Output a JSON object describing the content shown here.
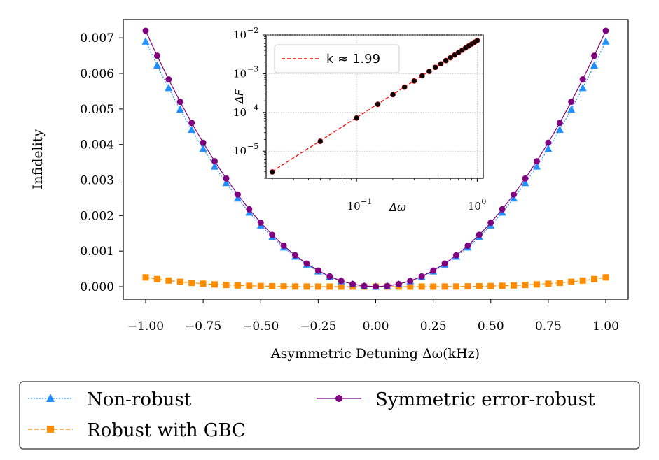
{
  "chart_data": [
    {
      "type": "line",
      "xlabel": "Asymmetric Detuning Δω(kHz)",
      "ylabel": "Infidelity",
      "xlim": [
        -1.0,
        1.0
      ],
      "ylim": [
        0.0,
        0.0072
      ],
      "xticks": [
        -1.0,
        -0.75,
        -0.5,
        -0.25,
        0.0,
        0.25,
        0.5,
        0.75,
        1.0
      ],
      "xtick_labels": [
        "−1.00",
        "−0.75",
        "−0.50",
        "−0.25",
        "0.00",
        "0.25",
        "0.50",
        "0.75",
        "1.00"
      ],
      "yticks": [
        0.0,
        0.001,
        0.002,
        0.003,
        0.004,
        0.005,
        0.006,
        0.007
      ],
      "ytick_labels": [
        "0.000",
        "0.001",
        "0.002",
        "0.003",
        "0.004",
        "0.005",
        "0.006",
        "0.007"
      ],
      "series": [
        {
          "name": "Non-robust",
          "model": "quadratic",
          "coef": 0.0069,
          "n_points": 41,
          "color": "#1e90ff",
          "marker": "triangle",
          "linestyle": "dotted"
        },
        {
          "name": "Robust with GBC",
          "model": "quartic",
          "coef": 0.00026,
          "n_points": 41,
          "color": "#ff8c00",
          "marker": "square",
          "linestyle": "dashed"
        },
        {
          "name": "Symmetric error-robust",
          "model": "quadratic",
          "coef": 0.0072,
          "n_points": 41,
          "color": "#800080",
          "marker": "circle",
          "linestyle": "solid"
        }
      ]
    },
    {
      "type": "scatter",
      "inset": true,
      "xlabel": "Δω",
      "ylabel": "ΔF",
      "xscale": "log",
      "yscale": "log",
      "xlim_log10": [
        -1.75,
        0.05
      ],
      "ylim_log10": [
        -5.7,
        -2.0
      ],
      "xtick_labels": [
        "10",
        "10"
      ],
      "xtick_exponents": [
        "−1",
        "0"
      ],
      "ytick_labels": [
        "10",
        "10",
        "10",
        "10"
      ],
      "ytick_exponents": [
        "−2",
        "−3",
        "−4",
        "−5"
      ],
      "points_x": [
        0.02,
        0.05,
        0.1,
        0.15,
        0.2,
        0.25,
        0.3,
        0.35,
        0.4,
        0.45,
        0.5,
        0.55,
        0.6,
        0.65,
        0.7,
        0.75,
        0.8,
        0.85,
        0.9,
        0.95,
        1.0
      ],
      "points_y": [
        2.9e-06,
        1.8e-05,
        7.2e-05,
        0.000162,
        0.000288,
        0.00045,
        0.000648,
        0.000882,
        0.00115,
        0.00146,
        0.0018,
        0.00218,
        0.00259,
        0.00304,
        0.00353,
        0.00405,
        0.00461,
        0.0052,
        0.00583,
        0.0065,
        0.0072
      ],
      "fit": {
        "label": "k ≈ 1.99",
        "slope": 1.99,
        "intercept_value": 0.0072,
        "color": "#ff0000"
      },
      "legend_location": "top-left"
    }
  ],
  "legend": {
    "items": [
      {
        "label": "Non-robust"
      },
      {
        "label": "Robust with GBC"
      },
      {
        "label": "Symmetric error-robust"
      }
    ]
  }
}
